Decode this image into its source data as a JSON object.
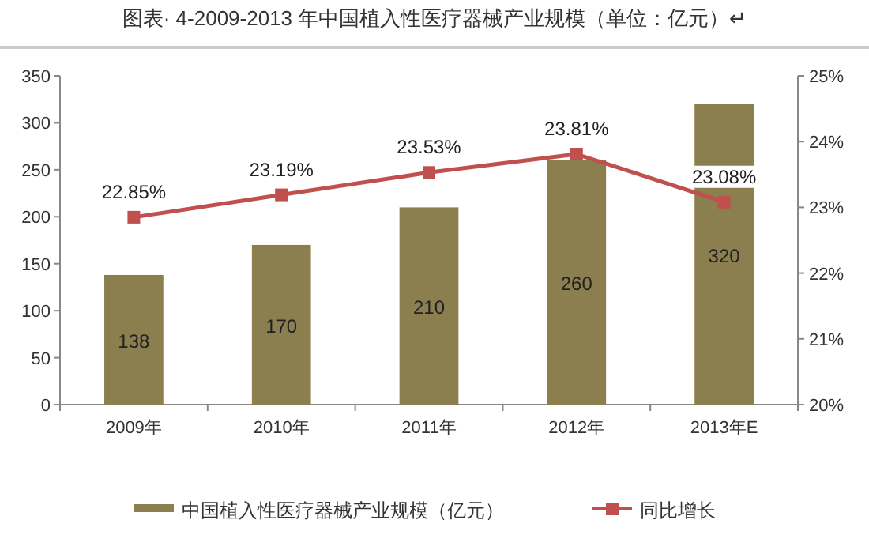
{
  "chart_data": {
    "type": "bar",
    "title": "图表· 4-2009-2013 年中国植入性医疗器械产业规模（单位：亿元）↵",
    "categories": [
      "2009年",
      "2010年",
      "2011年",
      "2012年",
      "2013年E"
    ],
    "series": [
      {
        "name": "中国植入性医疗器械产业规模（亿元）",
        "color": "#8b7f4f",
        "values": [
          138,
          170,
          210,
          260,
          320
        ],
        "data_labels": true
      },
      {
        "name": "同比增长",
        "type": "line",
        "axis": "y2",
        "color": "#c0504d",
        "values": [
          22.85,
          23.19,
          23.53,
          23.81,
          23.08
        ],
        "value_labels": [
          "22.85%",
          "23.19%",
          "23.53%",
          "23.81%",
          "23.08%"
        ],
        "marker": "square"
      }
    ],
    "ylim": [
      0,
      350
    ],
    "yticks": [
      0,
      50,
      100,
      150,
      200,
      250,
      300,
      350
    ],
    "y2lim": [
      20,
      25
    ],
    "y2ticks": [
      {
        "value": 20,
        "label": "20%"
      },
      {
        "value": 21,
        "label": "21%"
      },
      {
        "value": 22,
        "label": "22%"
      },
      {
        "value": 23,
        "label": "23%"
      },
      {
        "value": 24,
        "label": "24%"
      },
      {
        "value": 25,
        "label": "25%"
      }
    ],
    "legend": "bottom",
    "grid": false
  }
}
